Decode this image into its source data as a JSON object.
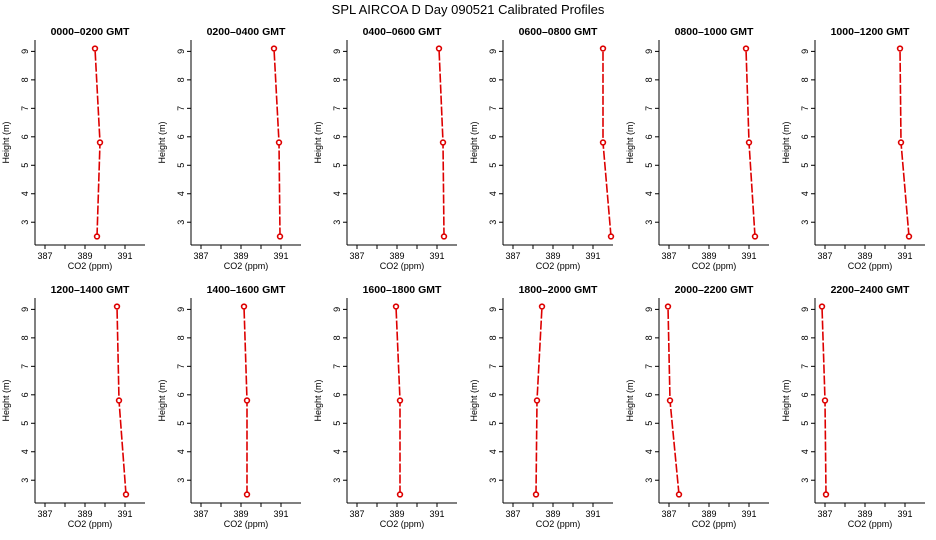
{
  "title": "SPL AIRCOA D  Day 090521  Calibrated Profiles",
  "colors": {
    "series": "#dd0000",
    "axis": "#000000"
  },
  "chart_data": [
    {
      "type": "line",
      "title": "0000–0200 GMT",
      "xlabel": "CO2 (ppm)",
      "ylabel": "Height (m)",
      "xlim": [
        386.5,
        392.0
      ],
      "ylim": [
        2.2,
        9.4
      ],
      "xticks": [
        387,
        388,
        389,
        390,
        391
      ],
      "xticklabels": [
        "387",
        "",
        "389",
        "",
        "391"
      ],
      "yticks": [
        3,
        4,
        5,
        6,
        7,
        8,
        9
      ],
      "points": [
        {
          "co2": 389.6,
          "height": 2.5
        },
        {
          "co2": 389.75,
          "height": 5.8
        },
        {
          "co2": 389.5,
          "height": 9.1
        }
      ]
    },
    {
      "type": "line",
      "title": "0200–0400 GMT",
      "xlabel": "CO2 (ppm)",
      "ylabel": "Height (m)",
      "xlim": [
        386.5,
        392.0
      ],
      "ylim": [
        2.2,
        9.4
      ],
      "xticks": [
        387,
        388,
        389,
        390,
        391
      ],
      "xticklabels": [
        "387",
        "",
        "389",
        "",
        "391"
      ],
      "yticks": [
        3,
        4,
        5,
        6,
        7,
        8,
        9
      ],
      "points": [
        {
          "co2": 390.95,
          "height": 2.5
        },
        {
          "co2": 390.9,
          "height": 5.8
        },
        {
          "co2": 390.65,
          "height": 9.1
        }
      ]
    },
    {
      "type": "line",
      "title": "0400–0600 GMT",
      "xlabel": "CO2 (ppm)",
      "ylabel": "Height (m)",
      "xlim": [
        386.5,
        392.0
      ],
      "ylim": [
        2.2,
        9.4
      ],
      "xticks": [
        387,
        388,
        389,
        390,
        391
      ],
      "xticklabels": [
        "387",
        "",
        "389",
        "",
        "391"
      ],
      "yticks": [
        3,
        4,
        5,
        6,
        7,
        8,
        9
      ],
      "points": [
        {
          "co2": 391.35,
          "height": 2.5
        },
        {
          "co2": 391.3,
          "height": 5.8
        },
        {
          "co2": 391.1,
          "height": 9.1
        }
      ]
    },
    {
      "type": "line",
      "title": "0600–0800 GMT",
      "xlabel": "CO2 (ppm)",
      "ylabel": "Height (m)",
      "xlim": [
        386.5,
        392.0
      ],
      "ylim": [
        2.2,
        9.4
      ],
      "xticks": [
        387,
        388,
        389,
        390,
        391
      ],
      "xticklabels": [
        "387",
        "",
        "389",
        "",
        "391"
      ],
      "yticks": [
        3,
        4,
        5,
        6,
        7,
        8,
        9
      ],
      "points": [
        {
          "co2": 391.9,
          "height": 2.5
        },
        {
          "co2": 391.5,
          "height": 5.8
        },
        {
          "co2": 391.5,
          "height": 9.1
        }
      ]
    },
    {
      "type": "line",
      "title": "0800–1000 GMT",
      "xlabel": "CO2 (ppm)",
      "ylabel": "Height (m)",
      "xlim": [
        386.5,
        392.0
      ],
      "ylim": [
        2.2,
        9.4
      ],
      "xticks": [
        387,
        388,
        389,
        390,
        391
      ],
      "xticklabels": [
        "387",
        "",
        "389",
        "",
        "391"
      ],
      "yticks": [
        3,
        4,
        5,
        6,
        7,
        8,
        9
      ],
      "points": [
        {
          "co2": 391.3,
          "height": 2.5
        },
        {
          "co2": 391.0,
          "height": 5.8
        },
        {
          "co2": 390.85,
          "height": 9.1
        }
      ]
    },
    {
      "type": "line",
      "title": "1000–1200 GMT",
      "xlabel": "CO2 (ppm)",
      "ylabel": "Height (m)",
      "xlim": [
        386.5,
        392.0
      ],
      "ylim": [
        2.2,
        9.4
      ],
      "xticks": [
        387,
        388,
        389,
        390,
        391
      ],
      "xticklabels": [
        "387",
        "",
        "389",
        "",
        "391"
      ],
      "yticks": [
        3,
        4,
        5,
        6,
        7,
        8,
        9
      ],
      "points": [
        {
          "co2": 391.2,
          "height": 2.5
        },
        {
          "co2": 390.8,
          "height": 5.8
        },
        {
          "co2": 390.75,
          "height": 9.1
        }
      ]
    },
    {
      "type": "line",
      "title": "1200–1400 GMT",
      "xlabel": "CO2 (ppm)",
      "ylabel": "Height (m)",
      "xlim": [
        386.5,
        392.0
      ],
      "ylim": [
        2.2,
        9.4
      ],
      "xticks": [
        387,
        388,
        389,
        390,
        391
      ],
      "xticklabels": [
        "387",
        "",
        "389",
        "",
        "391"
      ],
      "yticks": [
        3,
        4,
        5,
        6,
        7,
        8,
        9
      ],
      "points": [
        {
          "co2": 391.05,
          "height": 2.5
        },
        {
          "co2": 390.7,
          "height": 5.8
        },
        {
          "co2": 390.6,
          "height": 9.1
        }
      ]
    },
    {
      "type": "line",
      "title": "1400–1600 GMT",
      "xlabel": "CO2 (ppm)",
      "ylabel": "Height (m)",
      "xlim": [
        386.5,
        392.0
      ],
      "ylim": [
        2.2,
        9.4
      ],
      "xticks": [
        387,
        388,
        389,
        390,
        391
      ],
      "xticklabels": [
        "387",
        "",
        "389",
        "",
        "391"
      ],
      "yticks": [
        3,
        4,
        5,
        6,
        7,
        8,
        9
      ],
      "points": [
        {
          "co2": 389.3,
          "height": 2.5
        },
        {
          "co2": 389.3,
          "height": 5.8
        },
        {
          "co2": 389.15,
          "height": 9.1
        }
      ]
    },
    {
      "type": "line",
      "title": "1600–1800 GMT",
      "xlabel": "CO2 (ppm)",
      "ylabel": "Height (m)",
      "xlim": [
        386.5,
        392.0
      ],
      "ylim": [
        2.2,
        9.4
      ],
      "xticks": [
        387,
        388,
        389,
        390,
        391
      ],
      "xticklabels": [
        "387",
        "",
        "389",
        "",
        "391"
      ],
      "yticks": [
        3,
        4,
        5,
        6,
        7,
        8,
        9
      ],
      "points": [
        {
          "co2": 389.15,
          "height": 2.5
        },
        {
          "co2": 389.15,
          "height": 5.8
        },
        {
          "co2": 388.95,
          "height": 9.1
        }
      ]
    },
    {
      "type": "line",
      "title": "1800–2000 GMT",
      "xlabel": "CO2 (ppm)",
      "ylabel": "Height (m)",
      "xlim": [
        386.5,
        392.0
      ],
      "ylim": [
        2.2,
        9.4
      ],
      "xticks": [
        387,
        388,
        389,
        390,
        391
      ],
      "xticklabels": [
        "387",
        "",
        "389",
        "",
        "391"
      ],
      "yticks": [
        3,
        4,
        5,
        6,
        7,
        8,
        9
      ],
      "points": [
        {
          "co2": 388.15,
          "height": 2.5
        },
        {
          "co2": 388.2,
          "height": 5.8
        },
        {
          "co2": 388.45,
          "height": 9.1
        }
      ]
    },
    {
      "type": "line",
      "title": "2000–2200 GMT",
      "xlabel": "CO2 (ppm)",
      "ylabel": "Height (m)",
      "xlim": [
        386.5,
        392.0
      ],
      "ylim": [
        2.2,
        9.4
      ],
      "xticks": [
        387,
        388,
        389,
        390,
        391
      ],
      "xticklabels": [
        "387",
        "",
        "389",
        "",
        "391"
      ],
      "yticks": [
        3,
        4,
        5,
        6,
        7,
        8,
        9
      ],
      "points": [
        {
          "co2": 387.5,
          "height": 2.5
        },
        {
          "co2": 387.05,
          "height": 5.8
        },
        {
          "co2": 386.95,
          "height": 9.1
        }
      ]
    },
    {
      "type": "line",
      "title": "2200–2400 GMT",
      "xlabel": "CO2 (ppm)",
      "ylabel": "Height (m)",
      "xlim": [
        386.5,
        392.0
      ],
      "ylim": [
        2.2,
        9.4
      ],
      "xticks": [
        387,
        388,
        389,
        390,
        391
      ],
      "xticklabels": [
        "387",
        "",
        "389",
        "",
        "391"
      ],
      "yticks": [
        3,
        4,
        5,
        6,
        7,
        8,
        9
      ],
      "points": [
        {
          "co2": 387.05,
          "height": 2.5
        },
        {
          "co2": 387.0,
          "height": 5.8
        },
        {
          "co2": 386.85,
          "height": 9.1
        }
      ]
    }
  ]
}
